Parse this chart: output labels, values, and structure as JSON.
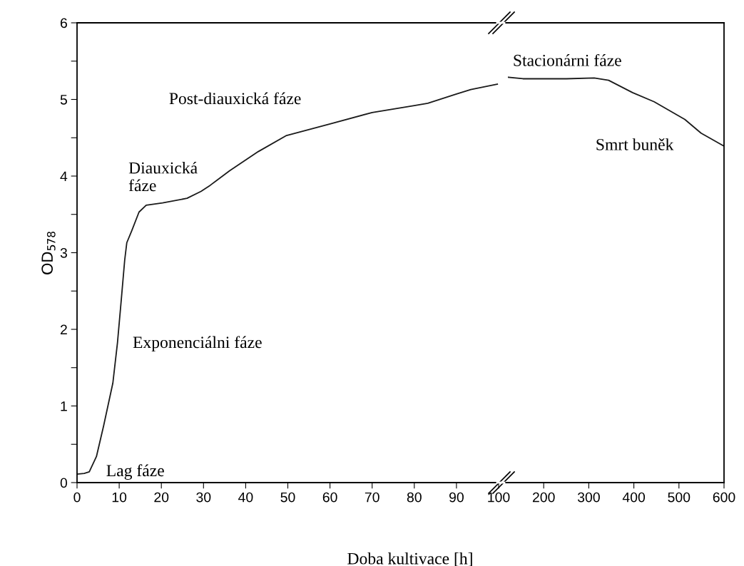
{
  "chart_data": [
    {
      "type": "line",
      "xlabel": "Doba kultivace [h]",
      "ylabel": "OD$_{578}$",
      "xlim": [
        0,
        100
      ],
      "ylim": [
        0,
        6
      ],
      "xticks": [
        0,
        10,
        20,
        30,
        40,
        50,
        60,
        70,
        80,
        90,
        100
      ],
      "yticks": [
        0,
        {
          "value": 0.5,
          "label": null
        },
        1,
        {
          "value": 1.5,
          "label": null
        },
        2,
        {
          "value": 2.5,
          "label": null
        },
        3,
        {
          "value": 3.5,
          "label": null
        },
        4,
        {
          "value": 4.5,
          "label": null
        },
        5,
        {
          "value": 5.5,
          "label": null
        },
        6
      ],
      "grid": false,
      "legend": false,
      "marker": "none",
      "line_style": "solid",
      "series": [
        {
          "color": "#1a1a1a",
          "x": [
            0,
            1.7,
            2.9,
            4.6,
            6.3,
            8.5,
            9.6,
            10.5,
            11.3,
            11.8,
            13.0,
            14.7,
            16.4,
            20.3,
            26.1,
            29.4,
            31.6,
            36.2,
            43.0,
            49.7,
            60,
            70,
            80,
            83.2,
            90,
            93.4,
            99.7
          ],
          "values": [
            0.11,
            0.12,
            0.14,
            0.34,
            0.74,
            1.3,
            1.83,
            2.39,
            2.9,
            3.13,
            3.29,
            3.53,
            3.62,
            3.65,
            3.71,
            3.8,
            3.88,
            4.07,
            4.32,
            4.53,
            4.68,
            4.83,
            4.92,
            4.95,
            5.07,
            5.13,
            5.2
          ]
        }
      ],
      "annotations": [
        "Lag fáze",
        "Exponenciálni fáze",
        "Diauxická\nfáze",
        "Post-diauxická fáze"
      ]
    },
    {
      "type": "line",
      "xlim": [
        100,
        600
      ],
      "ylim": [
        0,
        6
      ],
      "xticks": [
        200,
        300,
        400,
        500,
        600
      ],
      "tick_labels": "x",
      "grid": false,
      "legend": false,
      "marker": "none",
      "line_style": "solid",
      "series": [
        {
          "color": "#1a1a1a",
          "x": [
            122,
            154,
            250,
            312,
            344,
            397,
            445,
            513,
            549,
            600
          ],
          "values": [
            5.29,
            5.27,
            5.27,
            5.28,
            5.25,
            5.09,
            4.97,
            4.74,
            4.56,
            4.39
          ]
        }
      ],
      "annotations": [
        "Stacionárni fáze",
        "Smrt buněk"
      ]
    }
  ]
}
